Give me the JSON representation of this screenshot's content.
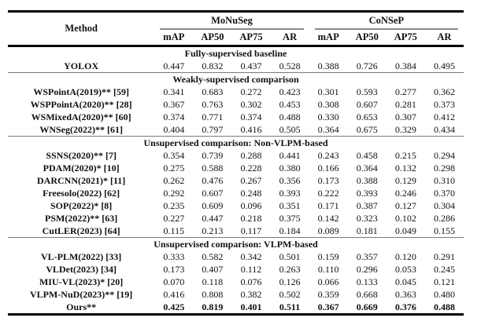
{
  "colors": {
    "heavy_rule": "#000000",
    "section_rule": "#7a7a7a",
    "text": "#111111"
  },
  "table": {
    "method_header": "Method",
    "groups": [
      {
        "label": "MoNuSeg",
        "columns": [
          "mAP",
          "AP50",
          "AP75",
          "AR"
        ]
      },
      {
        "label": "CoNSeP",
        "columns": [
          "mAP",
          "AP50",
          "AP75",
          "AR"
        ]
      }
    ],
    "sections": [
      {
        "title": "Fully-supervised baseline",
        "rows": [
          {
            "method": "YOLOX",
            "bold": false,
            "values": [
              "0.447",
              "0.832",
              "0.437",
              "0.528",
              "0.388",
              "0.726",
              "0.384",
              "0.495"
            ]
          }
        ]
      },
      {
        "title": "Weakly-supervised comparison",
        "rows": [
          {
            "method": "WSPointA(2019)** [59]",
            "bold": false,
            "values": [
              "0.341",
              "0.683",
              "0.272",
              "0.423",
              "0.301",
              "0.593",
              "0.277",
              "0.362"
            ]
          },
          {
            "method": "WSPPointA(2020)** [28]",
            "bold": false,
            "values": [
              "0.367",
              "0.763",
              "0.302",
              "0.453",
              "0.308",
              "0.607",
              "0.281",
              "0.373"
            ]
          },
          {
            "method": "WSMixedA(2020)** [60]",
            "bold": false,
            "values": [
              "0.374",
              "0.771",
              "0.374",
              "0.488",
              "0.330",
              "0.653",
              "0.307",
              "0.412"
            ]
          },
          {
            "method": "WNSeg(2022)** [61]",
            "bold": false,
            "values": [
              "0.404",
              "0.797",
              "0.416",
              "0.505",
              "0.364",
              "0.675",
              "0.329",
              "0.434"
            ]
          }
        ]
      },
      {
        "title": "Unsupervised comparison: Non-VLPM-based",
        "rows": [
          {
            "method": "SSNS(2020)** [7]",
            "bold": false,
            "values": [
              "0.354",
              "0.739",
              "0.288",
              "0.441",
              "0.243",
              "0.458",
              "0.215",
              "0.294"
            ]
          },
          {
            "method": "PDAM(2020)* [10]",
            "bold": false,
            "values": [
              "0.275",
              "0.588",
              "0.228",
              "0.380",
              "0.166",
              "0.364",
              "0.132",
              "0.298"
            ]
          },
          {
            "method": "DARCNN(2021)* [11]",
            "bold": false,
            "values": [
              "0.262",
              "0.476",
              "0.267",
              "0.356",
              "0.173",
              "0.388",
              "0.129",
              "0.310"
            ]
          },
          {
            "method": "Freesolo(2022) [62]",
            "bold": false,
            "values": [
              "0.292",
              "0.607",
              "0.248",
              "0.393",
              "0.222",
              "0.393",
              "0.246",
              "0.370"
            ]
          },
          {
            "method": "SOP(2022)* [8]",
            "bold": false,
            "values": [
              "0.235",
              "0.609",
              "0.096",
              "0.351",
              "0.171",
              "0.387",
              "0.127",
              "0.304"
            ]
          },
          {
            "method": "PSM(2022)** [63]",
            "bold": false,
            "values": [
              "0.227",
              "0.447",
              "0.218",
              "0.375",
              "0.142",
              "0.323",
              "0.102",
              "0.286"
            ]
          },
          {
            "method": "CutLER(2023) [64]",
            "bold": false,
            "values": [
              "0.115",
              "0.213",
              "0.117",
              "0.184",
              "0.089",
              "0.181",
              "0.049",
              "0.155"
            ]
          }
        ]
      },
      {
        "title": "Unsupervised comparison: VLPM-based",
        "rows": [
          {
            "method": "VL-PLM(2022) [33]",
            "bold": false,
            "values": [
              "0.333",
              "0.582",
              "0.342",
              "0.501",
              "0.159",
              "0.357",
              "0.120",
              "0.291"
            ]
          },
          {
            "method": "VLDet(2023) [34]",
            "bold": false,
            "values": [
              "0.173",
              "0.407",
              "0.112",
              "0.263",
              "0.110",
              "0.296",
              "0.053",
              "0.245"
            ]
          },
          {
            "method": "MIU-VL(2023)* [20]",
            "bold": false,
            "values": [
              "0.070",
              "0.118",
              "0.076",
              "0.126",
              "0.066",
              "0.133",
              "0.045",
              "0.121"
            ]
          },
          {
            "method": "VLPM-NuD(2023)** [19]",
            "bold": false,
            "values": [
              "0.416",
              "0.808",
              "0.382",
              "0.502",
              "0.359",
              "0.668",
              "0.363",
              "0.480"
            ]
          },
          {
            "method": "Ours**",
            "bold": true,
            "values": [
              "0.425",
              "0.819",
              "0.401",
              "0.511",
              "0.367",
              "0.669",
              "0.376",
              "0.488"
            ]
          }
        ]
      }
    ]
  }
}
